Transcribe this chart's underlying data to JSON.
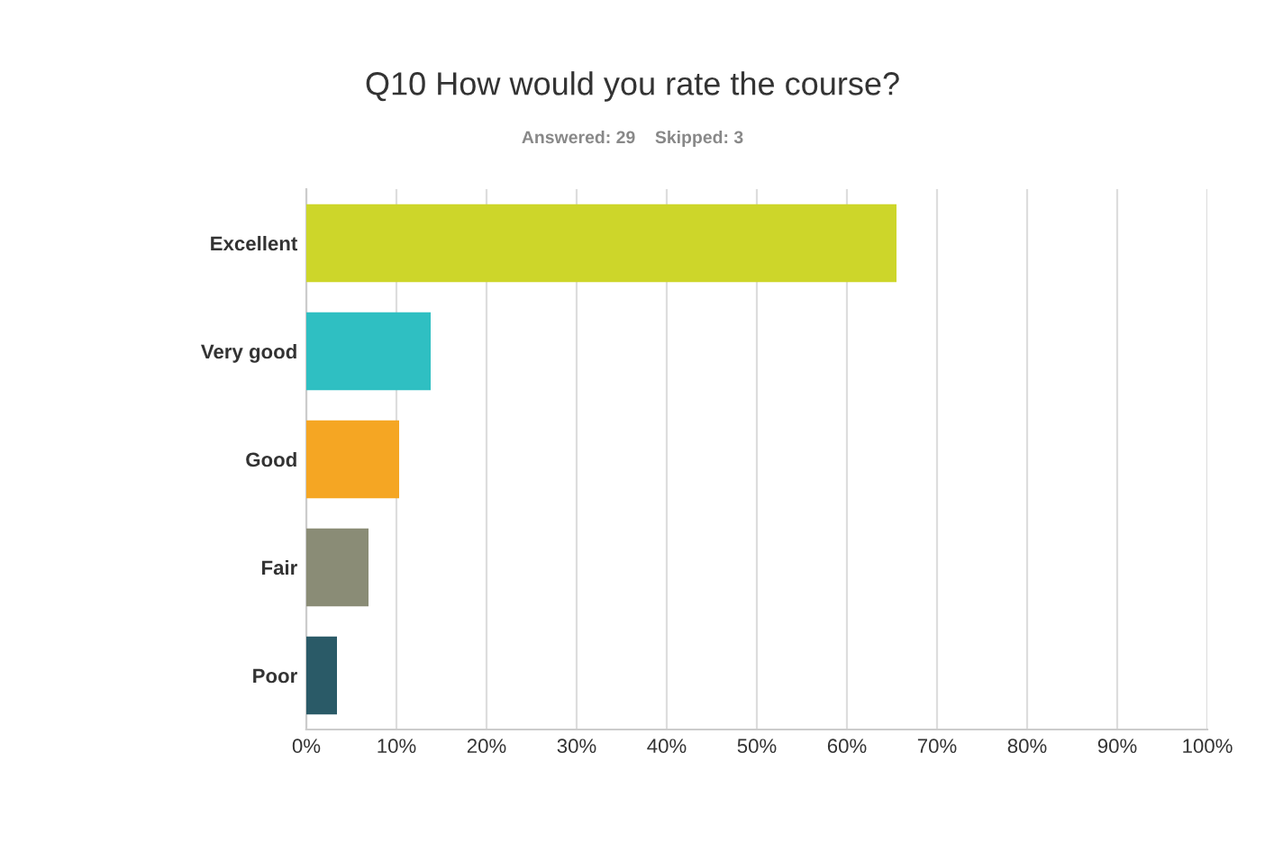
{
  "chart_data": {
    "type": "bar",
    "orientation": "horizontal",
    "title": "Q10 How would you rate the course?",
    "subtitle": "Answered: 29    Skipped: 3",
    "categories": [
      "Excellent",
      "Very good",
      "Good",
      "Fair",
      "Poor"
    ],
    "values": [
      65.5,
      13.8,
      10.3,
      6.9,
      3.4
    ],
    "colors": [
      "#cdd62a",
      "#2fbfc2",
      "#f5a623",
      "#8a8c76",
      "#2a5a67"
    ],
    "xlim": [
      0,
      100
    ],
    "xticks": [
      {
        "value": 0,
        "label": "0%"
      },
      {
        "value": 10,
        "label": "10%"
      },
      {
        "value": 20,
        "label": "20%"
      },
      {
        "value": 30,
        "label": "30%"
      },
      {
        "value": 40,
        "label": "40%"
      },
      {
        "value": 50,
        "label": "50%"
      },
      {
        "value": 60,
        "label": "60%"
      },
      {
        "value": 70,
        "label": "70%"
      },
      {
        "value": 80,
        "label": "80%"
      },
      {
        "value": 90,
        "label": "90%"
      },
      {
        "value": 100,
        "label": "100%"
      }
    ],
    "grid": "x"
  }
}
